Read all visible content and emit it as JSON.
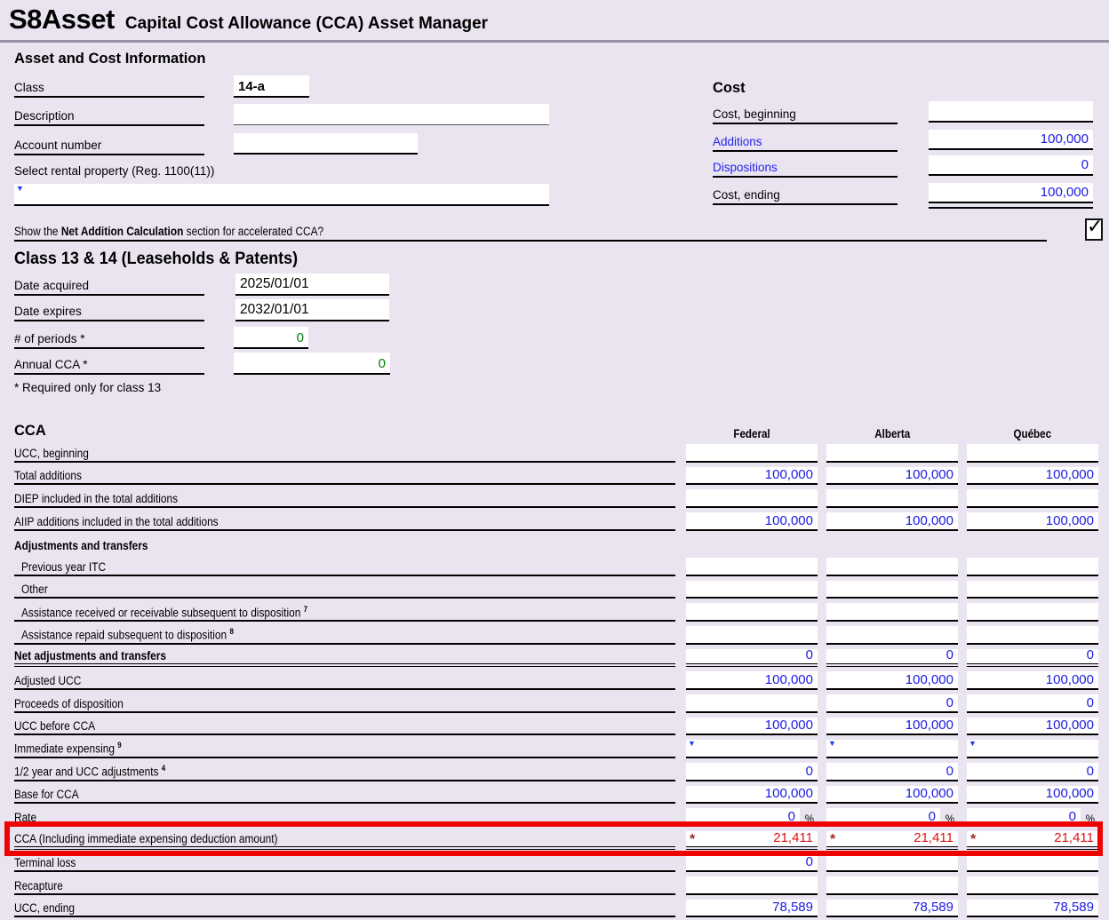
{
  "header": {
    "code": "S8Asset",
    "title": "Capital Cost Allowance (CCA) Asset Manager"
  },
  "asset_info": {
    "section_title": "Asset and Cost Information",
    "class_label": "Class",
    "class_value": "14-a",
    "description_label": "Description",
    "description_value": "",
    "account_label": "Account number",
    "account_value": "",
    "rental_label": "Select rental property (Reg. 1100(11))",
    "rental_value": ""
  },
  "cost": {
    "section_title": "Cost",
    "beginning_label": "Cost, beginning",
    "beginning_value": "",
    "additions_label": "Additions",
    "additions_value": "100,000",
    "dispositions_label": "Dispositions",
    "dispositions_value": "0",
    "ending_label": "Cost, ending",
    "ending_value": "100,000"
  },
  "net_addition_prompt": {
    "prefix": "Show the ",
    "bold": "Net Addition Calculation",
    "suffix": " section for accelerated CCA?",
    "checkbox_checked": true,
    "checkmark": "✓"
  },
  "class_13_14": {
    "section_title": "Class 13 & 14 (Leaseholds & Patents)",
    "date_acquired_label": "Date acquired",
    "date_acquired_value": "2025/01/01",
    "date_expires_label": "Date expires",
    "date_expires_value": "2032/01/01",
    "periods_label": "# of periods *",
    "periods_value": "0",
    "annual_cca_label": "Annual CCA *",
    "annual_cca_value": "0",
    "footnote": "* Required only for class 13"
  },
  "cca": {
    "section_title": "CCA",
    "columns": [
      "Federal",
      "Alberta",
      "Québec"
    ],
    "dropdown_icon": "▼",
    "asterisk_glyph": "*",
    "rows": [
      {
        "label": "UCC, beginning",
        "values": [
          "",
          "",
          ""
        ]
      },
      {
        "label": "Total additions",
        "values": [
          "100,000",
          "100,000",
          "100,000"
        ]
      },
      {
        "label": "DIEP included in the total additions",
        "values": [
          "",
          "",
          ""
        ]
      },
      {
        "label": "AIIP additions included in the total additions",
        "values": [
          "100,000",
          "100,000",
          "100,000"
        ]
      },
      {
        "label": "Adjustments and transfers",
        "style": "subheader"
      },
      {
        "label": "Previous year ITC",
        "indent": true,
        "values": [
          "",
          "",
          ""
        ]
      },
      {
        "label": "Other",
        "indent": true,
        "values": [
          "",
          "",
          ""
        ]
      },
      {
        "label": "Assistance received or receivable subsequent to disposition",
        "sup": "7",
        "indent": true,
        "values": [
          "",
          "",
          ""
        ]
      },
      {
        "label": "Assistance repaid subsequent to disposition",
        "sup": "8",
        "indent": true,
        "values": [
          "",
          "",
          ""
        ]
      },
      {
        "label": "Net adjustments and transfers",
        "style": "bold",
        "double": true,
        "values": [
          "0",
          "0",
          "0"
        ]
      },
      {
        "label": "Adjusted UCC",
        "values": [
          "100,000",
          "100,000",
          "100,000"
        ]
      },
      {
        "label": "Proceeds of disposition",
        "values": [
          "",
          "0",
          "0"
        ]
      },
      {
        "label": "UCC before CCA",
        "values": [
          "100,000",
          "100,000",
          "100,000"
        ]
      },
      {
        "label": "Immediate expensing",
        "sup": "9",
        "dropdown": true,
        "values": [
          "",
          "",
          ""
        ]
      },
      {
        "label": "1/2 year and UCC adjustments",
        "sup": "4",
        "values": [
          "0",
          "0",
          "0"
        ]
      },
      {
        "label": "Base for CCA",
        "values": [
          "100,000",
          "100,000",
          "100,000"
        ]
      },
      {
        "label": "Rate",
        "suffix": "%",
        "values": [
          "0",
          "0",
          "0"
        ]
      },
      {
        "label": "CCA (Including immediate expensing deduction amount)",
        "values": [
          "21,411",
          "21,411",
          "21,411"
        ],
        "value_color": "red",
        "asterisk": true,
        "double": true,
        "highlight": true
      },
      {
        "label": "Terminal loss",
        "values": [
          "0",
          "",
          ""
        ]
      },
      {
        "label": "Recapture",
        "values": [
          "",
          "",
          ""
        ]
      },
      {
        "label": "UCC, ending",
        "values": [
          "78,589",
          "78,589",
          "78,589"
        ]
      }
    ]
  }
}
